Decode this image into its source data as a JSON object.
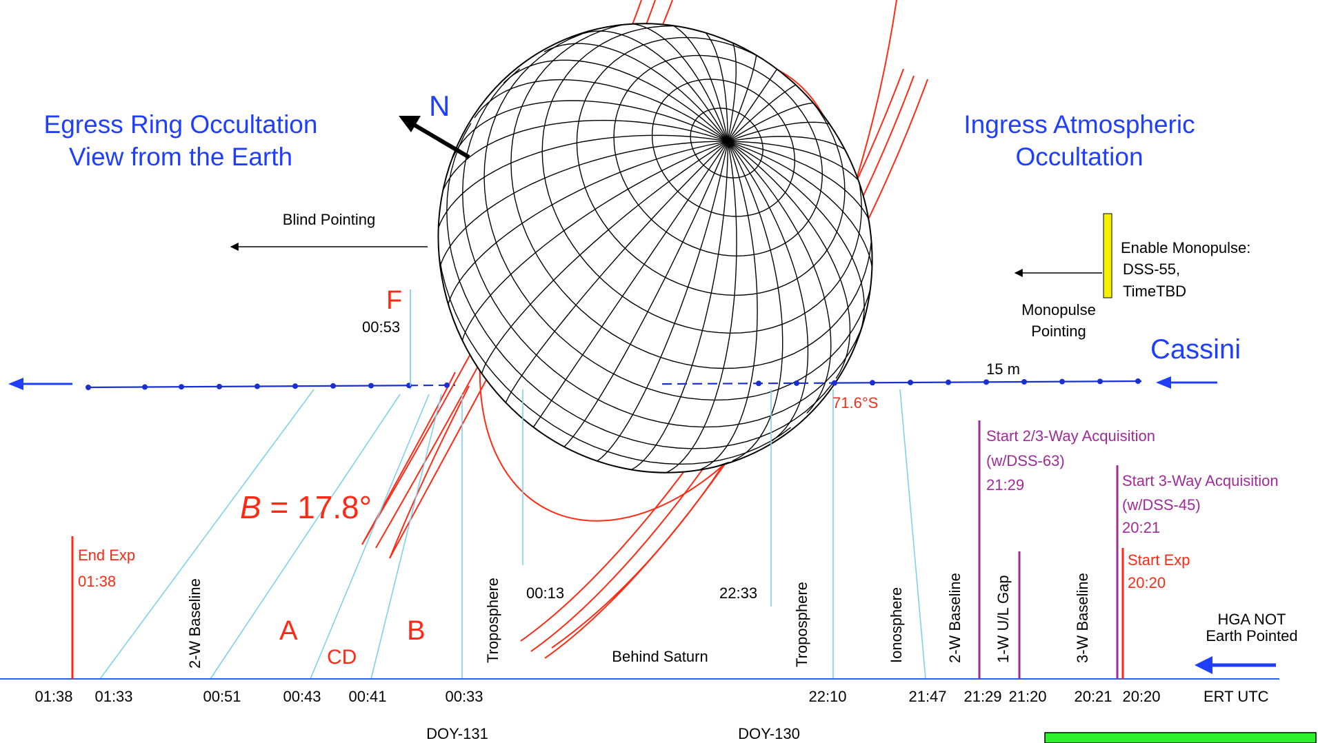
{
  "titles": {
    "egress_line1": "Egress Ring Occultation",
    "egress_line2": "View from the Earth",
    "ingress_line1": "Ingress Atmospheric",
    "ingress_line2": "Occultation"
  },
  "north_label": "N",
  "cassini_label": "Cassini",
  "blind_pointing": "Blind Pointing",
  "monopulse": {
    "enable_line1": "Enable Monopulse:",
    "enable_line2": "DSS-55,",
    "enable_line3": "TimeTBD",
    "pointing_line1": "Monopulse",
    "pointing_line2": "Pointing"
  },
  "ring_labels": {
    "F": "F",
    "A": "A",
    "CD": "CD",
    "B": "B"
  },
  "b_angle": {
    "symbol": "B",
    "value": " = 17.8°"
  },
  "latitude_label": "71.6°S",
  "interval_label": "15 m",
  "event_times": {
    "f_time": "00:53",
    "t_0013": "00:13",
    "t_2233": "22:33"
  },
  "vertical_labels": {
    "two_w_baseline_left": "2-W Baseline",
    "troposphere_left": "Troposphere",
    "troposphere_right": "Troposphere",
    "ionosphere": "Ionosphere",
    "two_w_baseline_right": "2-W Baseline",
    "one_w_gap": "1-W U/L Gap",
    "three_w_baseline": "3-W Baseline"
  },
  "behind_saturn": "Behind Saturn",
  "end_exp": {
    "label": "End Exp",
    "time": "01:38"
  },
  "start_exp": {
    "label": "Start Exp",
    "time": "20:20"
  },
  "acq_23": {
    "line1": "Start 2/3-Way Acquisition",
    "line2": "(w/DSS-63)",
    "time": "21:29"
  },
  "acq_3": {
    "line1": "Start 3-Way Acquisition",
    "line2": "(w/DSS-45)",
    "time": "20:21"
  },
  "hga": {
    "line1": "HGA NOT",
    "line2": "Earth Pointed"
  },
  "axis_ticks": [
    "01:38",
    "01:33",
    "00:51",
    "00:43",
    "00:41",
    "00:33",
    "22:10",
    "21:47",
    "21:29",
    "21:20",
    "20:21",
    "20:20"
  ],
  "ert_utc": "ERT UTC",
  "doy": {
    "d131": "DOY-131",
    "d130": "DOY-130"
  },
  "colors": {
    "blue_text": "#1f3fff",
    "red": "#ff2a14",
    "purple": "#a02a9a",
    "light_blue": "#7fd0ee",
    "axis_blue": "#2a5cff",
    "track_blue": "#1a2fd0",
    "yellow": "#f4f000",
    "green": "#2ef02e"
  }
}
